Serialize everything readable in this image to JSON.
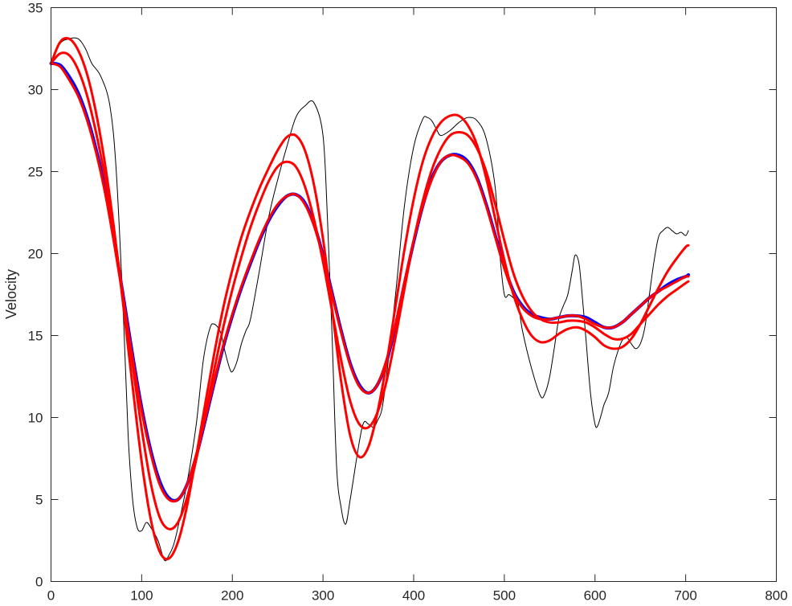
{
  "chart_data": {
    "type": "line",
    "title": "",
    "xlabel": "",
    "ylabel": "Velocity",
    "xlim": [
      0,
      800
    ],
    "ylim": [
      0,
      35
    ],
    "xticks": [
      0,
      100,
      200,
      300,
      400,
      500,
      600,
      700,
      800
    ],
    "yticks": [
      0,
      5,
      10,
      15,
      20,
      25,
      30,
      35
    ],
    "grid": false,
    "legend": "none",
    "series": [
      {
        "color": "#000000",
        "stroke_width": 1,
        "x": [
          0,
          10,
          20,
          30,
          38,
          45,
          55,
          65,
          72,
          80,
          85,
          90,
          95,
          100,
          105,
          110,
          118,
          125,
          130,
          135,
          140,
          150,
          160,
          168,
          175,
          180,
          187,
          192,
          197,
          200,
          205,
          210,
          215,
          220,
          230,
          240,
          250,
          260,
          270,
          280,
          290,
          300,
          305,
          310,
          315,
          320,
          325,
          330,
          340,
          345,
          350,
          356,
          360,
          365,
          370,
          380,
          390,
          400,
          410,
          415,
          420,
          425,
          430,
          440,
          450,
          460,
          470,
          480,
          490,
          495,
          500,
          505,
          510,
          515,
          520,
          530,
          540,
          545,
          550,
          555,
          560,
          565,
          570,
          575,
          578,
          582,
          585,
          590,
          595,
          600,
          603,
          607,
          610,
          615,
          620,
          625,
          630,
          635,
          640,
          645,
          650,
          655,
          660,
          665,
          670,
          675,
          680,
          685,
          690,
          695,
          700,
          703
        ],
        "y": [
          31.6,
          32.8,
          33.1,
          33.1,
          32.5,
          31.6,
          30.8,
          29.0,
          25.0,
          16.0,
          9.0,
          5.0,
          3.3,
          3.1,
          3.6,
          3.3,
          2.5,
          1.3,
          1.6,
          2.2,
          3.3,
          6.0,
          9.5,
          13.5,
          15.4,
          15.7,
          15.2,
          14.0,
          13.0,
          12.8,
          13.4,
          14.5,
          15.3,
          16.0,
          19.0,
          22.2,
          24.5,
          26.5,
          28.3,
          29.0,
          29.2,
          27.2,
          22.0,
          15.0,
          7.0,
          4.5,
          3.5,
          5.0,
          8.5,
          9.7,
          9.6,
          9.4,
          9.8,
          10.5,
          12.5,
          17.5,
          23.0,
          26.5,
          28.2,
          28.3,
          28.1,
          27.6,
          27.2,
          27.5,
          28.0,
          28.3,
          28.1,
          27.0,
          24.0,
          20.0,
          17.5,
          17.5,
          17.3,
          17.0,
          15.3,
          13.0,
          11.3,
          11.5,
          12.5,
          14.2,
          16.0,
          16.8,
          17.5,
          19.0,
          19.9,
          19.5,
          18.0,
          14.8,
          11.5,
          9.6,
          9.5,
          10.2,
          10.8,
          11.5,
          13.0,
          14.0,
          14.7,
          14.9,
          14.5,
          14.2,
          14.5,
          15.5,
          17.5,
          19.5,
          21.0,
          21.4,
          21.6,
          21.4,
          21.2,
          21.3,
          21.1,
          21.4
        ]
      },
      {
        "color": "#0000ff",
        "stroke_width": 4,
        "x": [
          0,
          10,
          20,
          30,
          40,
          50,
          60,
          70,
          80,
          90,
          100,
          110,
          120,
          130,
          140,
          150,
          160,
          170,
          180,
          190,
          200,
          210,
          220,
          230,
          240,
          250,
          260,
          270,
          280,
          290,
          300,
          310,
          320,
          330,
          340,
          350,
          360,
          370,
          380,
          390,
          400,
          410,
          420,
          430,
          440,
          450,
          460,
          470,
          480,
          490,
          500,
          510,
          520,
          530,
          540,
          550,
          560,
          570,
          580,
          590,
          600,
          610,
          620,
          630,
          640,
          650,
          660,
          670,
          680,
          690,
          700,
          703
        ],
        "y": [
          31.6,
          31.5,
          30.8,
          29.8,
          28.3,
          26.3,
          23.8,
          20.7,
          17.3,
          13.8,
          10.6,
          8.0,
          6.1,
          5.1,
          5.0,
          5.9,
          7.6,
          9.8,
          12.1,
          14.3,
          16.2,
          17.9,
          19.4,
          20.8,
          22.0,
          22.9,
          23.5,
          23.6,
          23.1,
          21.8,
          19.9,
          17.6,
          15.3,
          13.3,
          12.0,
          11.5,
          12.0,
          13.4,
          15.6,
          18.2,
          20.7,
          22.9,
          24.6,
          25.6,
          26.0,
          26.0,
          25.6,
          24.6,
          23.0,
          21.1,
          19.2,
          17.7,
          16.8,
          16.3,
          16.1,
          16.0,
          16.1,
          16.2,
          16.2,
          16.1,
          15.8,
          15.5,
          15.5,
          15.8,
          16.3,
          16.8,
          17.3,
          17.7,
          18.1,
          18.4,
          18.6,
          18.7
        ]
      },
      {
        "color": "#ff0000",
        "stroke_width": 3,
        "x": [
          0,
          10,
          20,
          30,
          40,
          50,
          60,
          70,
          80,
          90,
          100,
          110,
          120,
          130,
          140,
          150,
          160,
          170,
          180,
          190,
          200,
          210,
          220,
          230,
          240,
          250,
          260,
          270,
          280,
          290,
          300,
          310,
          320,
          330,
          340,
          350,
          360,
          370,
          380,
          390,
          400,
          410,
          420,
          430,
          440,
          450,
          460,
          470,
          480,
          490,
          500,
          510,
          520,
          530,
          540,
          550,
          560,
          570,
          580,
          590,
          600,
          610,
          620,
          630,
          640,
          650,
          660,
          670,
          680,
          690,
          700,
          703
        ],
        "y": [
          31.6,
          31.4,
          30.6,
          29.6,
          28.1,
          26.1,
          23.6,
          20.5,
          17.1,
          13.6,
          10.4,
          7.8,
          5.9,
          5.0,
          5.0,
          5.9,
          7.7,
          9.9,
          12.2,
          14.4,
          16.3,
          18.0,
          19.5,
          20.9,
          22.1,
          23.0,
          23.5,
          23.6,
          23.0,
          21.7,
          19.8,
          17.5,
          15.2,
          13.2,
          11.9,
          11.5,
          12.0,
          13.5,
          15.7,
          18.3,
          20.8,
          22.9,
          24.5,
          25.6,
          26.0,
          25.9,
          25.5,
          24.5,
          22.9,
          21.0,
          19.1,
          17.6,
          16.7,
          16.2,
          16.0,
          16.0,
          16.1,
          16.2,
          16.2,
          16.0,
          15.7,
          15.5,
          15.5,
          15.8,
          16.3,
          16.8,
          17.3,
          17.7,
          18.0,
          18.3,
          18.6,
          18.6
        ]
      },
      {
        "color": "#ff0000",
        "stroke_width": 3,
        "x": [
          0,
          10,
          20,
          30,
          40,
          50,
          60,
          70,
          80,
          90,
          100,
          110,
          120,
          130,
          140,
          150,
          160,
          170,
          180,
          190,
          200,
          210,
          220,
          230,
          240,
          250,
          260,
          270,
          280,
          290,
          300,
          310,
          320,
          330,
          340,
          350,
          360,
          370,
          380,
          390,
          400,
          410,
          420,
          430,
          440,
          450,
          460,
          470,
          480,
          490,
          500,
          510,
          520,
          530,
          540,
          550,
          560,
          570,
          580,
          590,
          600,
          610,
          620,
          630,
          640,
          650,
          660,
          670,
          680,
          690,
          700,
          703
        ],
        "y": [
          31.6,
          32.2,
          32.1,
          31.2,
          29.6,
          27.3,
          24.5,
          21.1,
          17.2,
          13.2,
          9.3,
          6.0,
          3.9,
          3.2,
          3.6,
          5.1,
          7.4,
          10.1,
          12.9,
          15.5,
          17.8,
          19.8,
          21.6,
          23.1,
          24.4,
          25.3,
          25.6,
          25.3,
          24.1,
          22.1,
          19.5,
          16.5,
          13.5,
          11.0,
          9.6,
          9.4,
          10.3,
          12.2,
          14.9,
          17.9,
          20.8,
          23.2,
          25.1,
          26.4,
          27.2,
          27.4,
          27.2,
          26.4,
          25.0,
          23.0,
          20.8,
          18.8,
          17.4,
          16.5,
          16.0,
          15.8,
          15.8,
          15.9,
          15.9,
          15.8,
          15.5,
          15.1,
          14.8,
          14.8,
          15.1,
          15.7,
          16.3,
          16.9,
          17.4,
          17.8,
          18.2,
          18.3
        ]
      },
      {
        "color": "#ff0000",
        "stroke_width": 3,
        "x": [
          0,
          10,
          20,
          30,
          40,
          50,
          60,
          70,
          80,
          90,
          100,
          110,
          120,
          130,
          140,
          150,
          160,
          170,
          180,
          190,
          200,
          210,
          220,
          230,
          240,
          250,
          260,
          270,
          280,
          290,
          300,
          310,
          320,
          330,
          340,
          350,
          360,
          370,
          380,
          390,
          400,
          410,
          420,
          430,
          440,
          450,
          460,
          470,
          480,
          490,
          500,
          510,
          520,
          530,
          540,
          550,
          560,
          570,
          580,
          590,
          600,
          610,
          620,
          630,
          640,
          650,
          660,
          670,
          680,
          690,
          700,
          703
        ],
        "y": [
          31.6,
          32.9,
          33.1,
          32.4,
          30.9,
          28.5,
          25.3,
          21.3,
          16.7,
          11.9,
          7.3,
          3.8,
          1.8,
          1.4,
          2.4,
          4.6,
          7.6,
          10.8,
          13.9,
          16.7,
          19.0,
          21.0,
          22.6,
          24.0,
          25.2,
          26.3,
          27.1,
          27.2,
          26.3,
          24.2,
          20.9,
          16.6,
          12.2,
          8.9,
          7.6,
          8.2,
          10.3,
          13.3,
          16.8,
          20.3,
          23.3,
          25.6,
          27.1,
          28.0,
          28.4,
          28.4,
          27.8,
          26.6,
          24.6,
          22.1,
          19.6,
          17.5,
          16.0,
          15.0,
          14.6,
          14.7,
          15.1,
          15.4,
          15.5,
          15.3,
          14.9,
          14.4,
          14.2,
          14.3,
          14.8,
          15.7,
          16.8,
          17.9,
          18.9,
          19.7,
          20.4,
          20.5
        ]
      }
    ]
  }
}
